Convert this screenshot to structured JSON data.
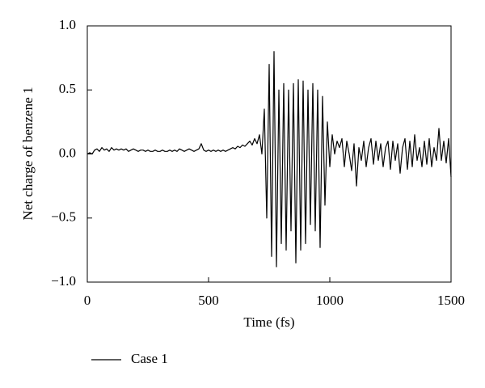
{
  "chart_data": {
    "type": "line",
    "xlabel": "Time (fs)",
    "ylabel": "Net charge of benzene 1",
    "x": [
      0,
      10,
      20,
      30,
      40,
      50,
      60,
      70,
      80,
      90,
      100,
      110,
      120,
      130,
      140,
      150,
      160,
      170,
      180,
      190,
      200,
      210,
      220,
      230,
      240,
      250,
      260,
      270,
      280,
      290,
      300,
      310,
      320,
      330,
      340,
      350,
      360,
      370,
      380,
      390,
      400,
      410,
      420,
      430,
      440,
      450,
      460,
      470,
      480,
      490,
      500,
      510,
      520,
      530,
      540,
      550,
      560,
      570,
      580,
      590,
      600,
      610,
      620,
      630,
      640,
      650,
      660,
      670,
      680,
      690,
      700,
      710,
      720,
      730,
      740,
      750,
      760,
      770,
      780,
      790,
      800,
      810,
      820,
      830,
      840,
      850,
      860,
      870,
      880,
      890,
      900,
      910,
      920,
      930,
      940,
      950,
      960,
      970,
      980,
      990,
      1000,
      1010,
      1020,
      1030,
      1040,
      1050,
      1060,
      1070,
      1080,
      1090,
      1100,
      1110,
      1120,
      1130,
      1140,
      1150,
      1160,
      1170,
      1180,
      1190,
      1200,
      1210,
      1220,
      1230,
      1240,
      1250,
      1260,
      1270,
      1280,
      1290,
      1300,
      1310,
      1320,
      1330,
      1340,
      1350,
      1360,
      1370,
      1380,
      1390,
      1400,
      1410,
      1420,
      1430,
      1440,
      1450,
      1460,
      1470,
      1480,
      1490,
      1500
    ],
    "series": [
      {
        "name": "Case 1",
        "color": "#000000",
        "values": [
          0.0,
          0.01,
          0.0,
          0.03,
          0.04,
          0.02,
          0.05,
          0.03,
          0.04,
          0.02,
          0.05,
          0.03,
          0.04,
          0.03,
          0.04,
          0.03,
          0.04,
          0.02,
          0.03,
          0.04,
          0.03,
          0.02,
          0.03,
          0.03,
          0.02,
          0.03,
          0.02,
          0.02,
          0.03,
          0.02,
          0.02,
          0.03,
          0.02,
          0.02,
          0.03,
          0.02,
          0.03,
          0.02,
          0.04,
          0.03,
          0.02,
          0.03,
          0.04,
          0.03,
          0.02,
          0.03,
          0.04,
          0.08,
          0.03,
          0.02,
          0.03,
          0.02,
          0.03,
          0.02,
          0.03,
          0.02,
          0.03,
          0.02,
          0.03,
          0.04,
          0.05,
          0.04,
          0.06,
          0.05,
          0.07,
          0.06,
          0.08,
          0.1,
          0.07,
          0.12,
          0.08,
          0.15,
          0.0,
          0.35,
          -0.5,
          0.7,
          -0.8,
          0.8,
          -0.88,
          0.5,
          -0.7,
          0.55,
          -0.75,
          0.5,
          -0.6,
          0.55,
          -0.85,
          0.58,
          -0.75,
          0.57,
          -0.7,
          0.5,
          -0.55,
          0.55,
          -0.6,
          0.5,
          -0.73,
          0.45,
          -0.4,
          0.25,
          -0.1,
          0.15,
          0.0,
          0.1,
          0.05,
          0.12,
          -0.1,
          0.1,
          0.0,
          -0.13,
          0.08,
          -0.25,
          0.05,
          -0.05,
          0.1,
          -0.1,
          0.05,
          0.12,
          -0.08,
          0.1,
          -0.05,
          0.08,
          -0.1,
          0.05,
          0.1,
          -0.12,
          0.1,
          -0.05,
          0.08,
          -0.15,
          0.05,
          0.12,
          -0.12,
          0.1,
          -0.1,
          0.15,
          -0.05,
          0.05,
          -0.1,
          0.1,
          -0.08,
          0.12,
          -0.1,
          0.05,
          -0.05,
          0.2,
          -0.05,
          0.1,
          -0.07,
          0.12,
          -0.18
        ]
      }
    ],
    "xlim": [
      0,
      1500
    ],
    "xticks": [
      0,
      500,
      1000,
      1500
    ],
    "ylim": [
      -1,
      1
    ],
    "yticks": [
      {
        "value": -1,
        "label": "−1.0"
      },
      {
        "value": -0.5,
        "label": "−0.5"
      },
      {
        "value": 0,
        "label": "0.0"
      },
      {
        "value": 0.5,
        "label": "0.5"
      },
      {
        "value": 1,
        "label": "1.0"
      }
    ],
    "grid": false,
    "legend": "bottom-left"
  }
}
